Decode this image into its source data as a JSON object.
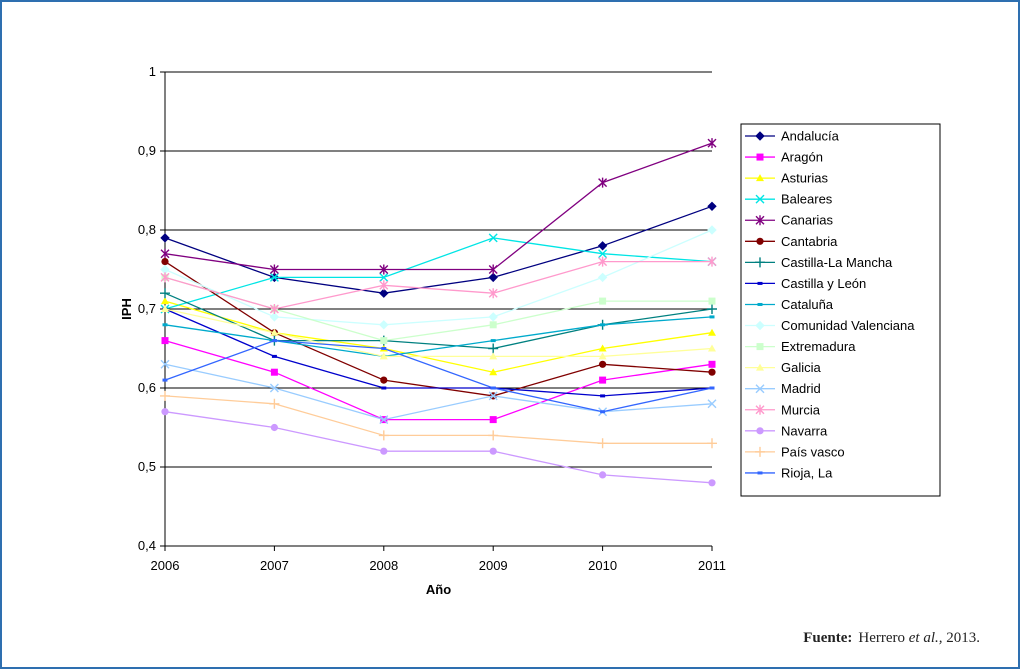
{
  "chart_data": {
    "type": "line",
    "title": "",
    "xlabel": "Año",
    "ylabel": "IPH",
    "x": [
      "2006",
      "2007",
      "2008",
      "2009",
      "2010",
      "2011"
    ],
    "ylim": [
      0.4,
      1
    ],
    "yticks": [
      "0,4",
      "0,5",
      "0,6",
      "0,7",
      "0,8",
      "0,9",
      "1"
    ],
    "grid": "horizontal",
    "legend_position": "right",
    "series": [
      {
        "name": "Andalucía",
        "color": "#000080",
        "marker": "diamond",
        "values": [
          0.79,
          0.74,
          0.72,
          0.74,
          0.78,
          0.83
        ]
      },
      {
        "name": "Aragón",
        "color": "#ff00ff",
        "marker": "square",
        "values": [
          0.66,
          0.62,
          0.56,
          0.56,
          0.61,
          0.63
        ]
      },
      {
        "name": "Asturias",
        "color": "#ffff00",
        "marker": "triangle",
        "values": [
          0.71,
          0.67,
          0.65,
          0.62,
          0.65,
          0.67
        ]
      },
      {
        "name": "Baleares",
        "color": "#00e5e5",
        "marker": "x",
        "values": [
          0.7,
          0.74,
          0.74,
          0.79,
          0.77,
          0.76
        ]
      },
      {
        "name": "Canarias",
        "color": "#800080",
        "marker": "star",
        "values": [
          0.77,
          0.75,
          0.75,
          0.75,
          0.86,
          0.91
        ]
      },
      {
        "name": "Cantabria",
        "color": "#800000",
        "marker": "circle",
        "values": [
          0.76,
          0.67,
          0.61,
          0.59,
          0.63,
          0.62
        ]
      },
      {
        "name": "Castilla-La Mancha",
        "color": "#008080",
        "marker": "plus",
        "values": [
          0.72,
          0.66,
          0.66,
          0.65,
          0.68,
          0.7
        ]
      },
      {
        "name": "Castilla y León",
        "color": "#0000cc",
        "marker": "dash",
        "values": [
          0.7,
          0.64,
          0.6,
          0.6,
          0.59,
          0.6
        ]
      },
      {
        "name": "Cataluña",
        "color": "#00aacc",
        "marker": "dash",
        "values": [
          0.68,
          0.66,
          0.64,
          0.66,
          0.68,
          0.69
        ]
      },
      {
        "name": "Comunidad Valenciana",
        "color": "#ccffff",
        "marker": "diamond",
        "values": [
          0.75,
          0.69,
          0.68,
          0.69,
          0.74,
          0.8
        ]
      },
      {
        "name": "Extremadura",
        "color": "#ccffcc",
        "marker": "square",
        "values": [
          0.74,
          0.7,
          0.66,
          0.68,
          0.71,
          0.71
        ]
      },
      {
        "name": "Galicia",
        "color": "#ffff99",
        "marker": "triangle",
        "values": [
          0.7,
          0.67,
          0.64,
          0.64,
          0.64,
          0.65
        ]
      },
      {
        "name": "Madrid",
        "color": "#99ccff",
        "marker": "x",
        "values": [
          0.63,
          0.6,
          0.56,
          0.59,
          0.57,
          0.58
        ]
      },
      {
        "name": "Murcia",
        "color": "#ff99cc",
        "marker": "star",
        "values": [
          0.74,
          0.7,
          0.73,
          0.72,
          0.76,
          0.76
        ]
      },
      {
        "name": "Navarra",
        "color": "#cc99ff",
        "marker": "circle",
        "values": [
          0.57,
          0.55,
          0.52,
          0.52,
          0.49,
          0.48
        ]
      },
      {
        "name": "País vasco",
        "color": "#ffcc99",
        "marker": "plus",
        "values": [
          0.59,
          0.58,
          0.54,
          0.54,
          0.53,
          0.53
        ]
      },
      {
        "name": "Rioja, La",
        "color": "#3366ff",
        "marker": "dash",
        "values": [
          0.61,
          0.66,
          0.65,
          0.6,
          0.57,
          0.6
        ]
      }
    ]
  },
  "source": {
    "label": "Fuente:",
    "author": "Herrero",
    "etal": "et al.,",
    "year": "2013."
  }
}
